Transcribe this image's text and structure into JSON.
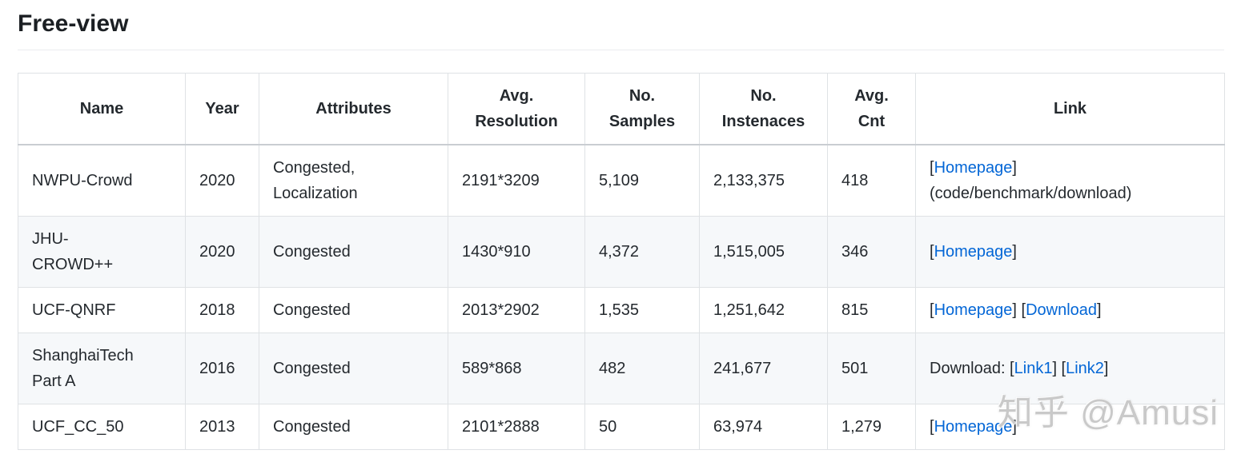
{
  "page": {
    "title": "Free-view"
  },
  "watermark": "知乎 @Amusi",
  "colors": {
    "link": "#0366d6",
    "text": "#24292e",
    "row_stripe": "#f6f8fa",
    "border": "#dfe2e5"
  },
  "table": {
    "columns": [
      "Name",
      "Year",
      "Attributes",
      "Avg.\nResolution",
      "No.\nSamples",
      "No.\nInstenaces",
      "Avg.\nCnt",
      "Link"
    ],
    "rows": [
      {
        "name": "NWPU-Crowd",
        "year": "2020",
        "attributes": "Congested,\nLocalization",
        "avg_resolution": "2191*3209",
        "no_samples": "5,109",
        "no_instenaces": "2,133,375",
        "avg_cnt": "418",
        "link_lines": [
          [
            {
              "text": "["
            },
            {
              "link": "Homepage"
            },
            {
              "text": "]"
            }
          ],
          [
            {
              "text": "(code/benchmark/download)"
            }
          ]
        ]
      },
      {
        "name": "JHU-\nCROWD++",
        "year": "2020",
        "attributes": "Congested",
        "avg_resolution": "1430*910",
        "no_samples": "4,372",
        "no_instenaces": "1,515,005",
        "avg_cnt": "346",
        "link_lines": [
          [
            {
              "text": "["
            },
            {
              "link": "Homepage"
            },
            {
              "text": "]"
            }
          ]
        ]
      },
      {
        "name": "UCF-QNRF",
        "year": "2018",
        "attributes": "Congested",
        "avg_resolution": "2013*2902",
        "no_samples": "1,535",
        "no_instenaces": "1,251,642",
        "avg_cnt": "815",
        "link_lines": [
          [
            {
              "text": "["
            },
            {
              "link": "Homepage"
            },
            {
              "text": "] ["
            },
            {
              "link": "Download"
            },
            {
              "text": "]"
            }
          ]
        ]
      },
      {
        "name": "ShanghaiTech\nPart A",
        "year": "2016",
        "attributes": "Congested",
        "avg_resolution": "589*868",
        "no_samples": "482",
        "no_instenaces": "241,677",
        "avg_cnt": "501",
        "link_lines": [
          [
            {
              "text": "Download: ["
            },
            {
              "link": "Link1"
            },
            {
              "text": "] ["
            },
            {
              "link": "Link2"
            },
            {
              "text": "]"
            }
          ]
        ]
      },
      {
        "name": "UCF_CC_50",
        "year": "2013",
        "attributes": "Congested",
        "avg_resolution": "2101*2888",
        "no_samples": "50",
        "no_instenaces": "63,974",
        "avg_cnt": "1,279",
        "link_lines": [
          [
            {
              "text": "["
            },
            {
              "link": "Homepage"
            },
            {
              "text": "]"
            }
          ]
        ]
      }
    ]
  }
}
